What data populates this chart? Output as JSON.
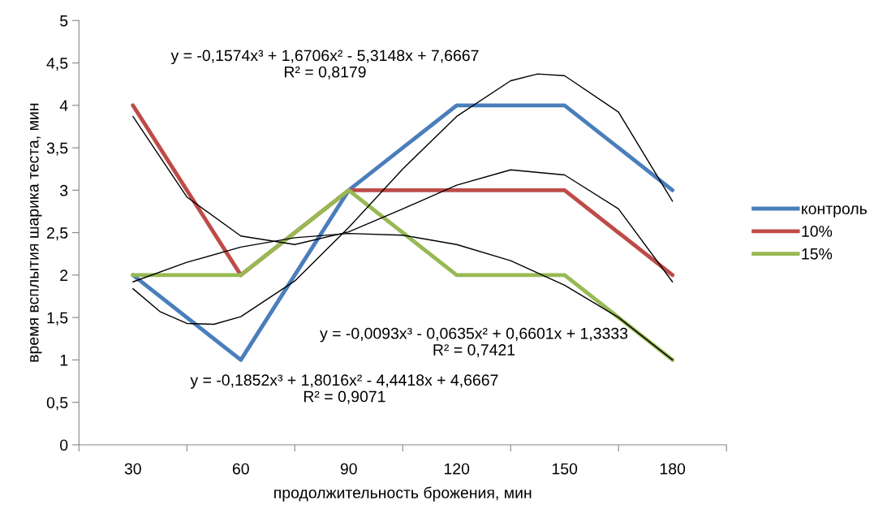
{
  "chart_data": {
    "type": "line",
    "xlabel": "продолжительность брожения, мин",
    "ylabel": "время всплытия шарика теста, мин",
    "x": [
      30,
      60,
      90,
      120,
      150,
      180
    ],
    "xlim": [
      15,
      195
    ],
    "xticks": [
      {
        "value": 15,
        "label": null
      },
      30,
      {
        "value": 45,
        "label": null
      },
      60,
      {
        "value": 75,
        "label": null
      },
      90,
      {
        "value": 105,
        "label": null
      },
      120,
      {
        "value": 135,
        "label": null
      },
      150,
      {
        "value": 165,
        "label": null
      },
      180,
      {
        "value": 195,
        "label": null
      }
    ],
    "ylim": [
      0,
      5
    ],
    "yticks": [
      0,
      {
        "value": 0.5,
        "label": "0,5"
      },
      1,
      {
        "value": 1.5,
        "label": "1,5"
      },
      2,
      {
        "value": 2.5,
        "label": "2,5"
      },
      3,
      {
        "value": 3.5,
        "label": "3,5"
      },
      4,
      {
        "value": 4.5,
        "label": "4,5"
      },
      5
    ],
    "grid": false,
    "legend": "right",
    "marker": "none",
    "line_style": "solid",
    "series": [
      {
        "name": "контроль",
        "color": "#4a7ebb",
        "values": [
          2,
          1,
          3,
          4,
          4,
          3
        ]
      },
      {
        "name": "10%",
        "color": "#be4b48",
        "values": [
          4,
          2,
          3,
          3,
          3,
          2
        ]
      },
      {
        "name": "15%",
        "color": "#98b954",
        "values": [
          2,
          2,
          3,
          2,
          2,
          1
        ]
      },
      {
        "color": "#000000",
        "x": [
          30,
          37.5,
          45,
          52.5,
          60,
          75,
          90,
          105,
          120,
          135,
          142.5,
          150,
          165,
          180
        ],
        "values": [
          1.84,
          1.57,
          1.43,
          1.42,
          1.51,
          1.93,
          2.56,
          3.25,
          3.87,
          4.29,
          4.37,
          4.35,
          3.92,
          2.87
        ]
      },
      {
        "color": "#000000",
        "x": [
          30,
          45,
          60,
          75,
          90,
          105,
          120,
          135,
          150,
          165,
          180
        ],
        "values": [
          3.87,
          2.92,
          2.46,
          2.36,
          2.51,
          2.78,
          3.06,
          3.24,
          3.18,
          2.78,
          1.92
        ]
      },
      {
        "color": "#000000",
        "x": [
          30,
          45,
          60,
          75,
          90,
          105,
          120,
          135,
          150,
          165,
          180
        ],
        "values": [
          1.92,
          2.15,
          2.33,
          2.44,
          2.49,
          2.47,
          2.36,
          2.17,
          1.88,
          1.5,
          1.0
        ]
      }
    ],
    "annotations": [
      "y = -0,1574x³ + 1,6706x² - 5,3148x + 7,6667\nR² = 0,8179",
      "y = -0,0093x³ - 0,0635x² + 0,6601x + 1,3333\nR² = 0,7421",
      "y = -0,1852x³ + 1,8016x² - 4,4418x + 4,6667\nR² = 0,9071"
    ]
  }
}
